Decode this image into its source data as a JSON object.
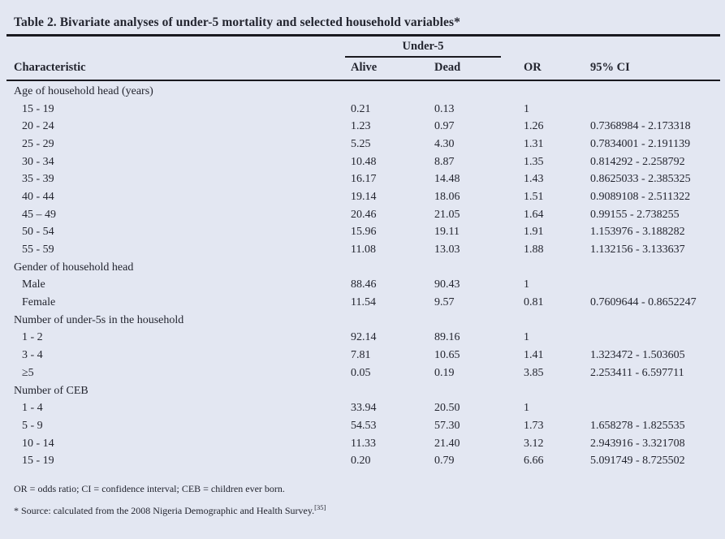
{
  "colors": {
    "background": "#e3e7f2",
    "text": "#23252f",
    "rule": "#1a1a20"
  },
  "title": "Table 2. Bivariate analyses of under-5 mortality and selected household variables*",
  "table": {
    "group_header": "Under-5",
    "columns": [
      "Characteristic",
      "Alive",
      "Dead",
      "OR",
      "95% CI"
    ],
    "sections": [
      {
        "label": "Age of household head (years)",
        "rows": [
          {
            "characteristic": "15 - 19",
            "alive": "0.21",
            "dead": "0.13",
            "or": "1",
            "ci": ""
          },
          {
            "characteristic": "20 - 24",
            "alive": "1.23",
            "dead": "0.97",
            "or": "1.26",
            "ci": "0.7368984 - 2.173318"
          },
          {
            "characteristic": "25 - 29",
            "alive": "5.25",
            "dead": "4.30",
            "or": "1.31",
            "ci": "0.7834001 - 2.191139"
          },
          {
            "characteristic": "30 - 34",
            "alive": "10.48",
            "dead": "8.87",
            "or": "1.35",
            "ci": "0.814292 - 2.258792"
          },
          {
            "characteristic": "35 - 39",
            "alive": "16.17",
            "dead": "14.48",
            "or": "1.43",
            "ci": "0.8625033 - 2.385325"
          },
          {
            "characteristic": "40 - 44",
            "alive": "19.14",
            "dead": "18.06",
            "or": "1.51",
            "ci": "0.9089108 - 2.511322"
          },
          {
            "characteristic": "45 – 49",
            "alive": "20.46",
            "dead": "21.05",
            "or": "1.64",
            "ci": "0.99155 - 2.738255"
          },
          {
            "characteristic": "50 - 54",
            "alive": "15.96",
            "dead": "19.11",
            "or": "1.91",
            "ci": "1.153976 - 3.188282"
          },
          {
            "characteristic": "55 - 59",
            "alive": "11.08",
            "dead": "13.03",
            "or": "1.88",
            "ci": "1.132156 - 3.133637"
          }
        ]
      },
      {
        "label": "Gender of household head",
        "rows": [
          {
            "characteristic": "Male",
            "alive": "88.46",
            "dead": "90.43",
            "or": "1",
            "ci": ""
          },
          {
            "characteristic": "Female",
            "alive": "11.54",
            "dead": "9.57",
            "or": "0.81",
            "ci": "0.7609644 - 0.8652247"
          }
        ]
      },
      {
        "label": "Number of under-5s in the household",
        "rows": [
          {
            "characteristic": "1 - 2",
            "alive": "92.14",
            "dead": "89.16",
            "or": "1",
            "ci": ""
          },
          {
            "characteristic": "3 - 4",
            "alive": "7.81",
            "dead": "10.65",
            "or": "1.41",
            "ci": "1.323472 - 1.503605"
          },
          {
            "characteristic": "≥5",
            "alive": "0.05",
            "dead": "0.19",
            "or": "3.85",
            "ci": "2.253411 - 6.597711"
          }
        ]
      },
      {
        "label": "Number of CEB",
        "rows": [
          {
            "characteristic": "1 - 4",
            "alive": "33.94",
            "dead": "20.50",
            "or": "1",
            "ci": ""
          },
          {
            "characteristic": "5 - 9",
            "alive": "54.53",
            "dead": "57.30",
            "or": "1.73",
            "ci": "1.658278 - 1.825535"
          },
          {
            "characteristic": "10 - 14",
            "alive": "11.33",
            "dead": "21.40",
            "or": "3.12",
            "ci": "2.943916 - 3.321708"
          },
          {
            "characteristic": "15 - 19",
            "alive": "0.20",
            "dead": "0.79",
            "or": "6.66",
            "ci": "5.091749 - 8.725502"
          }
        ]
      }
    ]
  },
  "footnotes": {
    "abbreviations": "OR = odds ratio; CI = confidence interval; CEB = children ever born.",
    "source_prefix": "* Source: calculated from the 2008 Nigeria Demographic and Health Survey.",
    "source_ref": "[35]"
  }
}
